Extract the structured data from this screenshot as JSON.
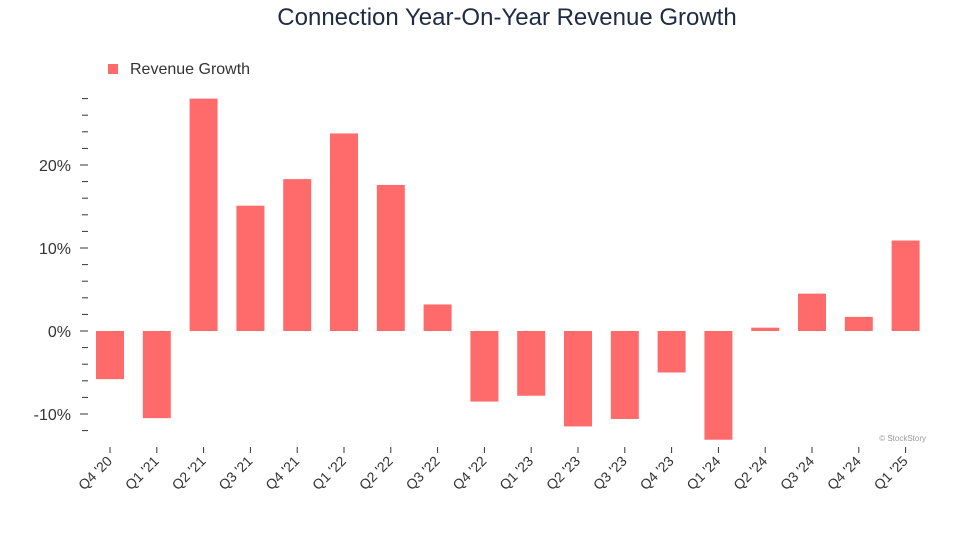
{
  "chart_data": {
    "type": "bar",
    "title": "Connection Year-On-Year Revenue Growth",
    "xlabel": "",
    "ylabel": "",
    "legend": {
      "position": "top-left",
      "entries": [
        "Revenue Growth"
      ]
    },
    "categories": [
      "Q4 '20",
      "Q1 '21",
      "Q2 '21",
      "Q3 '21",
      "Q4 '21",
      "Q1 '22",
      "Q2 '22",
      "Q3 '22",
      "Q4 '22",
      "Q1 '23",
      "Q2 '23",
      "Q3 '23",
      "Q4 '23",
      "Q1 '24",
      "Q2 '24",
      "Q3 '24",
      "Q4 '24",
      "Q1 '25"
    ],
    "series": [
      {
        "name": "Revenue Growth",
        "values": [
          -5.8,
          -10.5,
          28.0,
          15.1,
          18.3,
          23.8,
          17.6,
          3.2,
          -8.5,
          -7.8,
          -11.5,
          -10.6,
          -5.0,
          -13.1,
          0.4,
          4.5,
          1.7,
          10.9
        ]
      }
    ],
    "yticks": [
      -10,
      0,
      10,
      20
    ],
    "ytick_labels": [
      "-10%",
      "0%",
      "10%",
      "20%"
    ],
    "ylim": [
      -13.8,
      28.2
    ],
    "grid": false,
    "colors": {
      "bar": "#ff6b6b",
      "title": "#1f2a44",
      "text": "#333333",
      "credit": "#9a9a9a"
    }
  },
  "credit": "© StockStory"
}
